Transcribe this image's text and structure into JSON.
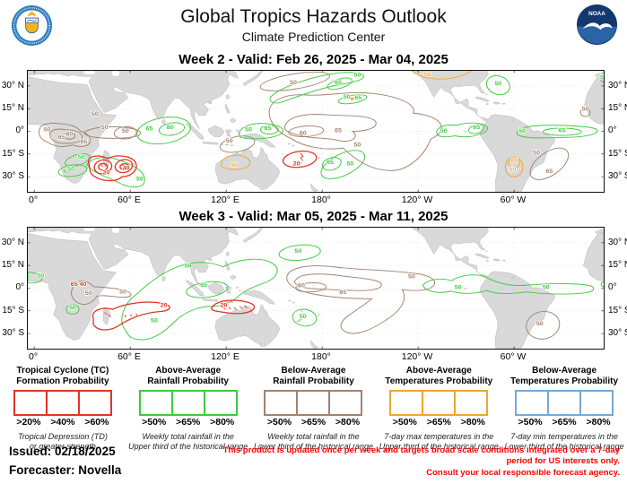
{
  "header": {
    "title": "Global Tropics Hazards Outlook",
    "subtitle": "Climate Prediction Center",
    "left_logo": "us-department-of-commerce-seal",
    "right_logo": "noaa-logo",
    "noaa_text": "NOAA"
  },
  "colors": {
    "red": "#e23425",
    "green": "#3ecb3e",
    "brown": "#a3826f",
    "orange": "#f0a62c",
    "blue": "#74a9d8",
    "land": "#d9d9d9",
    "grid": "#c9c9c9"
  },
  "axis": {
    "lat": [
      "30° N",
      "15° N",
      "0°",
      "15° S",
      "30° S"
    ],
    "lon": [
      "0°",
      "60° E",
      "120° E",
      "180°",
      "120° W",
      "60° W"
    ]
  },
  "week2": {
    "title": "Week 2 - Valid: Feb 26, 2025 - Mar 04, 2025",
    "contour_labels": [
      [
        "50",
        38,
        29.5,
        "brown"
      ],
      [
        "50",
        8,
        40,
        "brown"
      ],
      [
        "65",
        17,
        45,
        "brown"
      ],
      [
        "80",
        22,
        43,
        "brown"
      ],
      [
        "65",
        31,
        48,
        "brown"
      ],
      [
        "50",
        44,
        38.5,
        "brown"
      ],
      [
        "50",
        162,
        9,
        "brown"
      ],
      [
        "50",
        57,
        41,
        "brown"
      ],
      [
        "50",
        122,
        47.5,
        "brown"
      ],
      [
        "80",
        168,
        42.5,
        "brown"
      ],
      [
        "65",
        190,
        40.5,
        "brown"
      ],
      [
        "50",
        202,
        50,
        "brown"
      ],
      [
        "50",
        314,
        55.5,
        "brown"
      ],
      [
        "65",
        322,
        67.5,
        "brown"
      ],
      [
        "50",
        344.5,
        26.5,
        "brown"
      ],
      [
        "65",
        72,
        39.5,
        "green"
      ],
      [
        "80",
        85,
        38.5,
        "green"
      ],
      [
        "50",
        134,
        40,
        "green"
      ],
      [
        "65",
        146,
        39,
        "green"
      ],
      [
        "50",
        202,
        4,
        "green"
      ],
      [
        "65",
        190,
        9,
        "green"
      ],
      [
        "50",
        195.5,
        18.5,
        "green"
      ],
      [
        "65",
        202.5,
        19,
        "green"
      ],
      [
        "65",
        185,
        61.5,
        "green"
      ],
      [
        "50",
        197.5,
        62.5,
        "green"
      ],
      [
        "50",
        256,
        41,
        "green"
      ],
      [
        "65",
        276.5,
        38.5,
        "green"
      ],
      [
        "50",
        290,
        9.5,
        "green"
      ],
      [
        "50",
        305,
        41,
        "green"
      ],
      [
        "65",
        330,
        40.5,
        "green"
      ],
      [
        "50",
        356,
        5.5,
        "green"
      ],
      [
        "50",
        29.5,
        58,
        "green"
      ],
      [
        "50",
        23,
        66,
        "green"
      ],
      [
        "50",
        66,
        72.5,
        "green"
      ],
      [
        "20",
        45,
        68.5,
        "red"
      ],
      [
        "40",
        57.5,
        65.5,
        "red"
      ],
      [
        "20",
        164,
        62.5,
        "red"
      ],
      [
        "50",
        125,
        63.5,
        "orange"
      ],
      [
        "65",
        300,
        60.5,
        "orange"
      ],
      [
        "50",
        299,
        66.5,
        "orange"
      ],
      [
        "50",
        246,
        3.5,
        "orange"
      ]
    ]
  },
  "week3": {
    "title": "Week 3 - Valid: Mar 05, 2025 - Mar 11, 2025",
    "contour_labels": [
      [
        "50",
        4,
        33,
        "green"
      ],
      [
        "50",
        24,
        54,
        "green"
      ],
      [
        "50",
        96,
        26.5,
        "green"
      ],
      [
        "65",
        106,
        39,
        "green"
      ],
      [
        "50",
        75,
        62.5,
        "green"
      ],
      [
        "50",
        165,
        16.5,
        "green"
      ],
      [
        "50",
        168,
        60,
        "green"
      ],
      [
        "50",
        265,
        40.5,
        "green"
      ],
      [
        "50",
        320,
        40.5,
        "green"
      ],
      [
        "50",
        34,
        44.5,
        "brown"
      ],
      [
        "50",
        55.5,
        43.5,
        "brown"
      ],
      [
        "80",
        167,
        39.5,
        "brown"
      ],
      [
        "65",
        193,
        44,
        "brown"
      ],
      [
        "50",
        236,
        33.5,
        "brown"
      ],
      [
        "50",
        316,
        64.5,
        "brown"
      ],
      [
        "65",
        25,
        38.5,
        "red"
      ],
      [
        "40",
        30.5,
        38.5,
        "red"
      ],
      [
        "20",
        81,
        52.5,
        "red"
      ],
      [
        "20",
        118.5,
        52.5,
        "red"
      ]
    ]
  },
  "legend": {
    "items": [
      {
        "color": "red",
        "line1": "Tropical Cyclone (TC)",
        "line2": "Formation Probability",
        "thresholds": [
          ">20%",
          ">40%",
          ">60%"
        ],
        "note1": "Tropical Depression (TD)",
        "note2": "or greater strength"
      },
      {
        "color": "green",
        "line1": "Above-Average",
        "line2": "Rainfall Probability",
        "thresholds": [
          ">50%",
          ">65%",
          ">80%"
        ],
        "note1": "Weekly total rainfall in the",
        "note2": "Upper third of the historical range"
      },
      {
        "color": "brown",
        "line1": "Below-Average",
        "line2": "Rainfall Probability",
        "thresholds": [
          ">50%",
          ">65%",
          ">80%"
        ],
        "note1": "Weekly total rainfall in the",
        "note2": "Lower third of the historical range"
      },
      {
        "color": "orange",
        "line1": "Above-Average",
        "line2": "Temperatures Probability",
        "thresholds": [
          ">50%",
          ">65%",
          ">80%"
        ],
        "note1": "7-day max temperatures in the",
        "note2": "Upper third of the historical range"
      },
      {
        "color": "blue",
        "line1": "Below-Average",
        "line2": "Temperatures Probability",
        "thresholds": [
          ">50%",
          ">65%",
          ">80%"
        ],
        "note1": "7-day min temperatures in the",
        "note2": "Lower third of the historical range"
      }
    ]
  },
  "footer": {
    "issued": "Issued: 02/18/2025",
    "forecaster": "Forecaster: Novella",
    "disclaimer1": "This product is updated once per week and targets broad scale conditions integrated over a 7-day period for US interests only.",
    "disclaimer2": "Consult your local responsible forecast agency."
  }
}
